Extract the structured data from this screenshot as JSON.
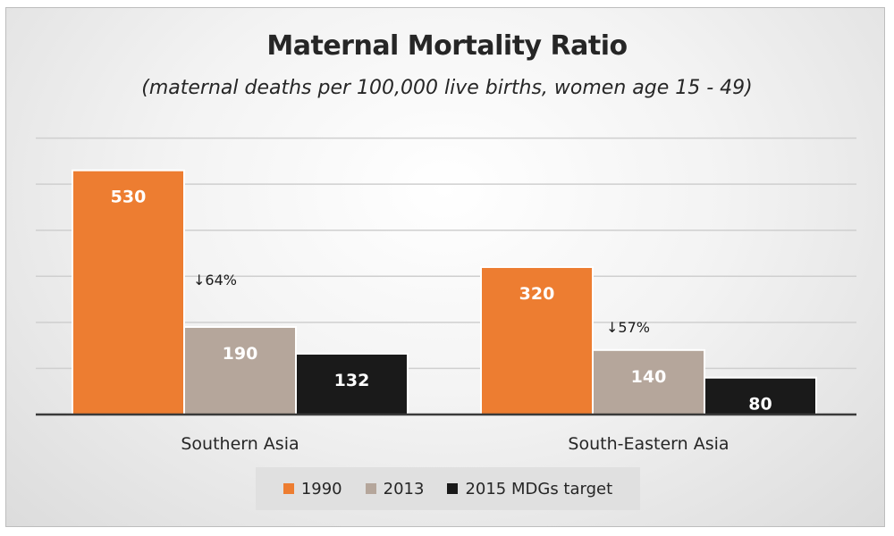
{
  "chart_data": {
    "type": "bar",
    "title": "Maternal Mortality Ratio",
    "subtitle": "(maternal deaths per 100,000 live births, women age 15 - 49)",
    "xlabel": "",
    "ylabel": "",
    "ylim": [
      0,
      600
    ],
    "grid": true,
    "legend_position": "bottom",
    "categories": [
      "Southern Asia",
      "South-Eastern Asia"
    ],
    "series": [
      {
        "name": "1990",
        "values": [
          530,
          320
        ],
        "color": "#ED7D31"
      },
      {
        "name": "2013",
        "values": [
          190,
          140
        ],
        "color": "#B5A69B"
      },
      {
        "name": "2015 MDGs target",
        "values": [
          132,
          80
        ],
        "color": "#1A1A1A"
      }
    ],
    "annotations": [
      "↓64%",
      "↓57%"
    ]
  }
}
